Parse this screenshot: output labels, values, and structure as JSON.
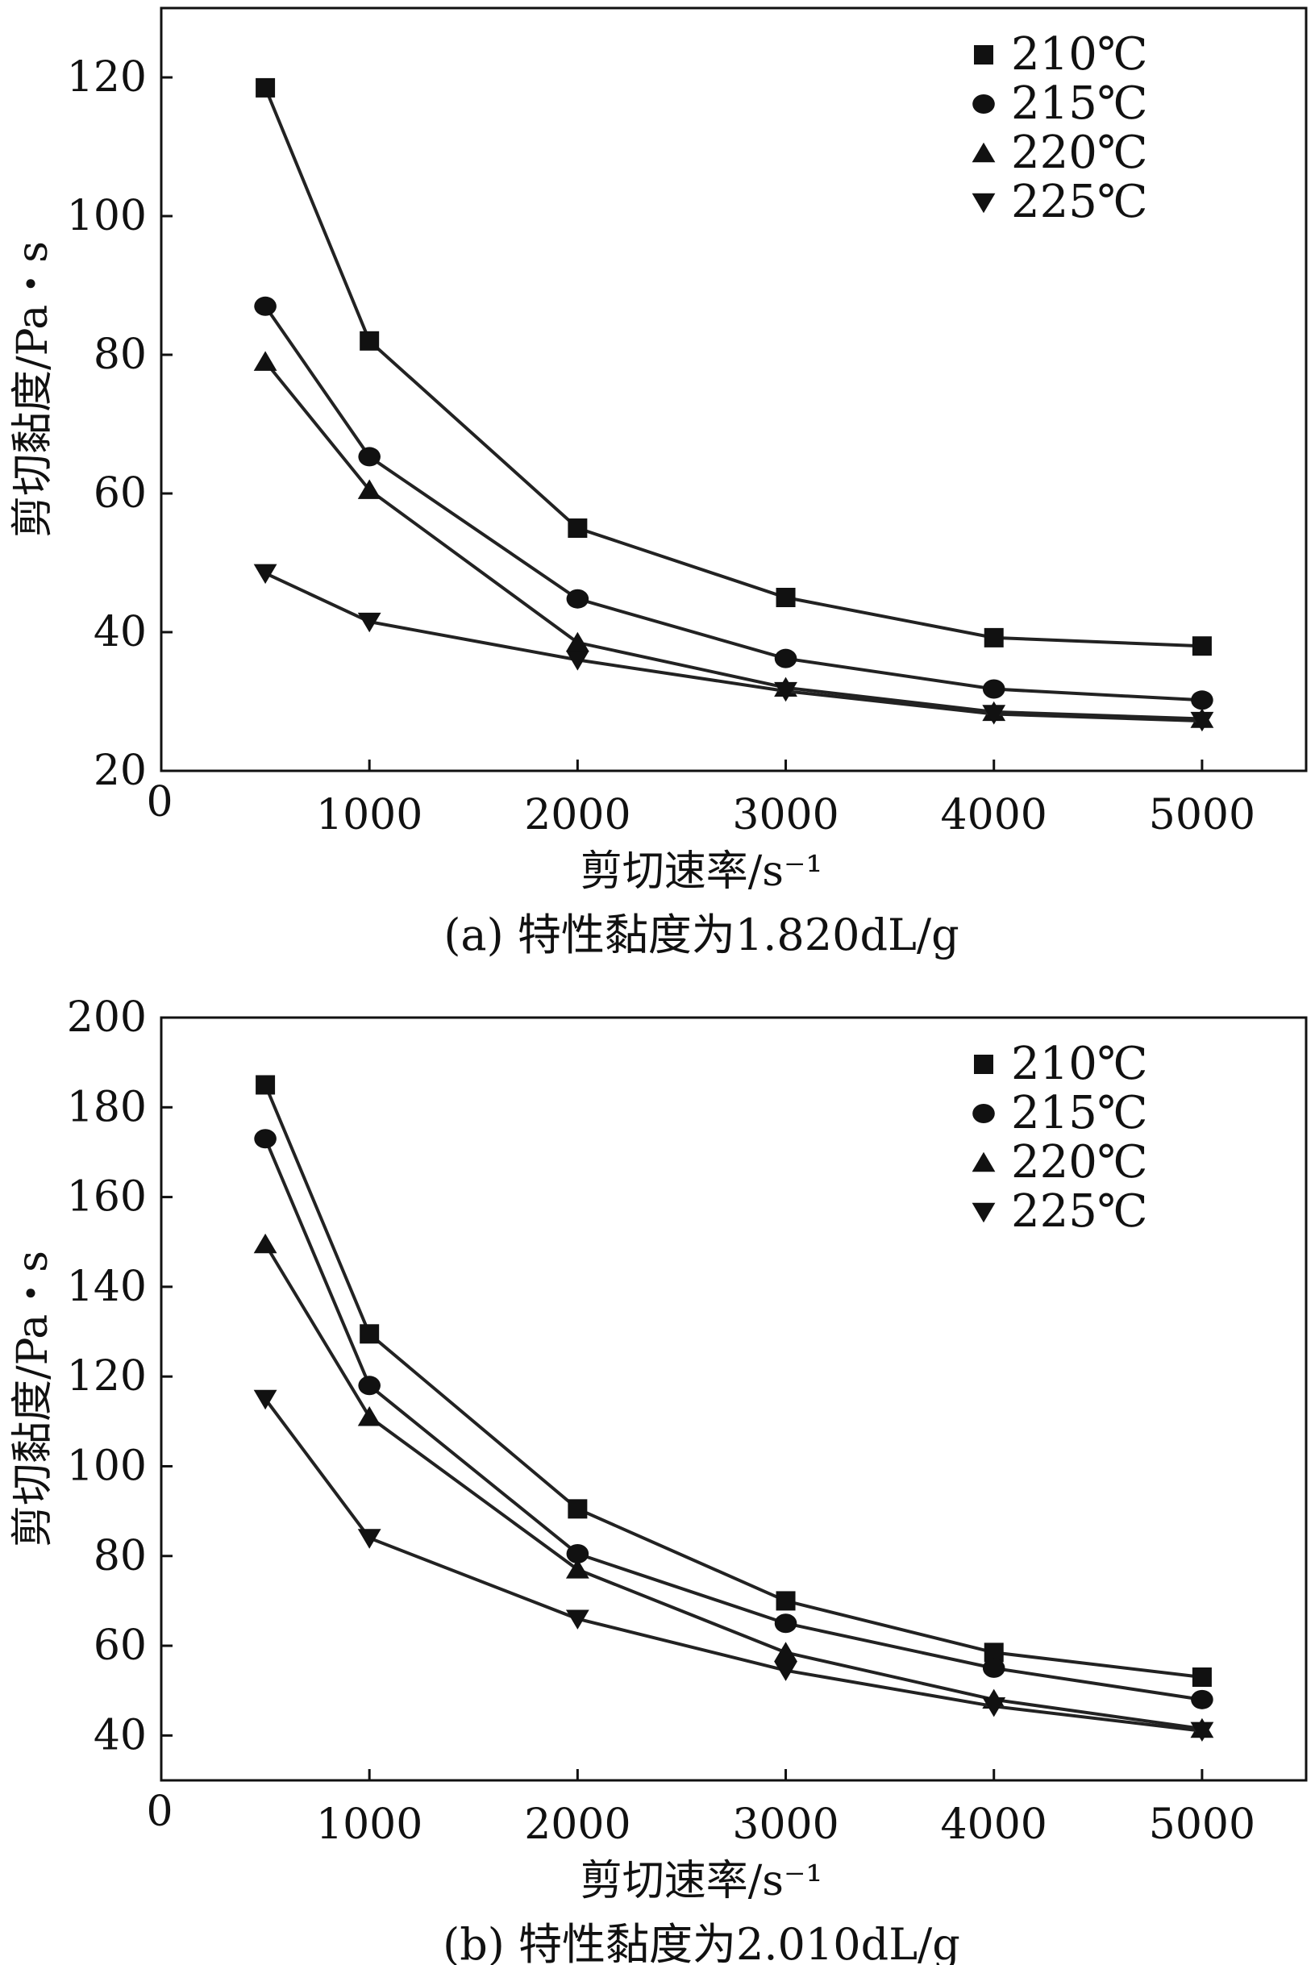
{
  "chart_data": [
    {
      "type": "line",
      "caption": "(a) 特性黏度为1.820dL/g",
      "xlabel": "剪切速率/s⁻¹",
      "ylabel": "剪切黏度/Pa・s",
      "xlim": [
        0,
        5500
      ],
      "ylim": [
        20,
        130
      ],
      "x_origin_label": "0",
      "xticks": [
        1000,
        2000,
        3000,
        4000,
        5000
      ],
      "yticks": [
        20,
        40,
        60,
        80,
        100,
        120
      ],
      "legend_position": "top-right",
      "x": [
        500,
        1000,
        2000,
        3000,
        4000,
        5000
      ],
      "series": [
        {
          "name": "210℃",
          "marker": "square",
          "values": [
            118.5,
            82,
            55,
            45,
            39.2,
            38
          ]
        },
        {
          "name": "215℃",
          "marker": "circle",
          "values": [
            87,
            65.3,
            44.8,
            36.2,
            31.8,
            30.2
          ]
        },
        {
          "name": "220℃",
          "marker": "triangle-up",
          "values": [
            79,
            60.5,
            38.5,
            32,
            28.5,
            27.5
          ]
        },
        {
          "name": "225℃",
          "marker": "triangle-down",
          "values": [
            48.5,
            41.5,
            36,
            31.5,
            28.2,
            27.2
          ]
        }
      ]
    },
    {
      "type": "line",
      "caption": "(b) 特性黏度为2.010dL/g",
      "xlabel": "剪切速率/s⁻¹",
      "ylabel": "剪切黏度/Pa・s",
      "xlim": [
        0,
        5500
      ],
      "ylim": [
        30,
        200
      ],
      "x_origin_label": "0",
      "xticks": [
        1000,
        2000,
        3000,
        4000,
        5000
      ],
      "yticks": [
        40,
        60,
        80,
        100,
        120,
        140,
        160,
        180,
        200
      ],
      "legend_position": "top-right",
      "x": [
        500,
        1000,
        2000,
        3000,
        4000,
        5000
      ],
      "series": [
        {
          "name": "210℃",
          "marker": "square",
          "values": [
            185,
            129.5,
            90.5,
            70,
            58.5,
            53
          ]
        },
        {
          "name": "215℃",
          "marker": "circle",
          "values": [
            173,
            118,
            80.5,
            65,
            55,
            48
          ]
        },
        {
          "name": "220℃",
          "marker": "triangle-up",
          "values": [
            149.5,
            111,
            77,
            58.5,
            48,
            41.5
          ]
        },
        {
          "name": "225℃",
          "marker": "triangle-down",
          "values": [
            115,
            84,
            66,
            54.5,
            46.5,
            41
          ]
        }
      ]
    }
  ]
}
